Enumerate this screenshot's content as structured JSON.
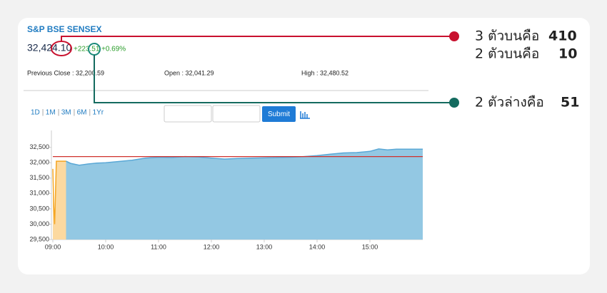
{
  "header": {
    "title": "S&P BSE SENSEX",
    "price": "32,424.10",
    "change": "+223.51",
    "change_pct": "+0.69%",
    "stats": [
      "Previous Close : 32,200.59",
      "Open : 32,041.29",
      "High : 32,480.52"
    ]
  },
  "controls": {
    "ranges": [
      "1D",
      "1M",
      "3M",
      "6M",
      "1Yr"
    ],
    "separator": "|",
    "button": "Submit"
  },
  "annotations": [
    {
      "text": "3 ตัวบนคือ",
      "value": "410",
      "color": "#c8102e"
    },
    {
      "text": "2 ตัวบนคือ",
      "value": "10",
      "color": "#c8102e"
    },
    {
      "text": "2 ตัวล่างคือ",
      "value": "51",
      "color": "#1a8a7a"
    }
  ],
  "chart_data": {
    "type": "area",
    "series": [
      {
        "color": "#f5a623",
        "fill": "#fcd9a0",
        "x": [
          "09:00",
          "09:01",
          "09:02",
          "09:03",
          "09:04",
          "09:15"
        ],
        "values": [
          31800,
          30600,
          30000,
          31000,
          32050,
          32050
        ]
      },
      {
        "color": "#5aa8d6",
        "fill": "#93c8e3",
        "x": [
          "09:15",
          "09:20",
          "09:30",
          "09:40",
          "09:50",
          "10:00",
          "10:15",
          "10:30",
          "10:45",
          "11:00",
          "11:15",
          "11:30",
          "11:45",
          "12:00",
          "12:15",
          "12:30",
          "12:45",
          "13:00",
          "13:15",
          "13:30",
          "13:45",
          "14:00",
          "14:15",
          "14:30",
          "14:45",
          "15:00",
          "15:10",
          "15:20",
          "15:30",
          "16:00"
        ],
        "values": [
          32050,
          31980,
          31920,
          31960,
          31990,
          32000,
          32040,
          32080,
          32150,
          32180,
          32170,
          32200,
          32190,
          32150,
          32120,
          32140,
          32150,
          32160,
          32170,
          32180,
          32200,
          32230,
          32280,
          32320,
          32330,
          32370,
          32450,
          32420,
          32440,
          32440
        ]
      }
    ],
    "reference_value": 32200.59,
    "reference_color": "#d0312d",
    "xlim": [
      "09:00",
      "16:00"
    ],
    "xticks": [
      "09:00",
      "10:00",
      "11:00",
      "12:00",
      "13:00",
      "14:00",
      "15:00"
    ],
    "ylim": [
      29500,
      33050
    ],
    "yticks": [
      {
        "value": 29500,
        "label": "29,500"
      },
      {
        "value": 30000,
        "label": "30,000"
      },
      {
        "value": 30500,
        "label": "30,500"
      },
      {
        "value": 31000,
        "label": "31,000"
      },
      {
        "value": 31500,
        "label": "31,500"
      },
      {
        "value": 32000,
        "label": "32,000"
      },
      {
        "value": 32500,
        "label": "32,500"
      }
    ],
    "grid": false
  }
}
